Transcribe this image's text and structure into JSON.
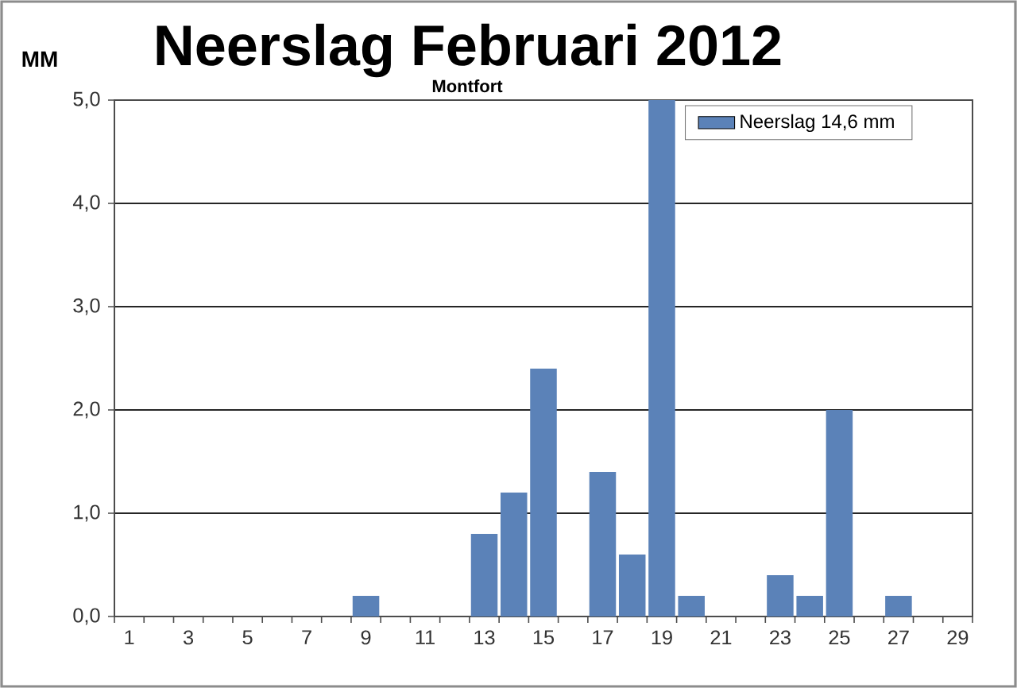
{
  "chart_data": {
    "type": "bar",
    "title": "Neerslag Februari 2012",
    "subtitle": "Montfort",
    "ylabel": "MM",
    "categories": [
      "1",
      null,
      "3",
      null,
      "5",
      null,
      "7",
      null,
      "9",
      null,
      "11",
      null,
      "13",
      null,
      "15",
      null,
      "17",
      null,
      "19",
      null,
      "21",
      null,
      "23",
      null,
      "25",
      null,
      "27",
      null,
      "29"
    ],
    "series": [
      {
        "name": "Neerslag 14,6 mm",
        "color": "#5b82b8",
        "values": [
          null,
          null,
          0,
          null,
          null,
          null,
          0,
          null,
          0.2,
          null,
          null,
          0,
          0.8,
          1.2,
          2.4,
          0,
          1.4,
          0.6,
          5.0,
          0.2,
          null,
          null,
          0.4,
          0.2,
          2.0,
          null,
          0.2,
          0,
          null
        ]
      }
    ],
    "ylim": [
      0,
      5
    ],
    "yticks": [
      {
        "value": 0,
        "label": "0,0"
      },
      {
        "value": 1,
        "label": "1,0"
      },
      {
        "value": 2,
        "label": "2,0"
      },
      {
        "value": 3,
        "label": "3,0"
      },
      {
        "value": 4,
        "label": "4,0"
      },
      {
        "value": 5,
        "label": "5,0"
      }
    ],
    "grid": "y",
    "legend": "top right"
  }
}
